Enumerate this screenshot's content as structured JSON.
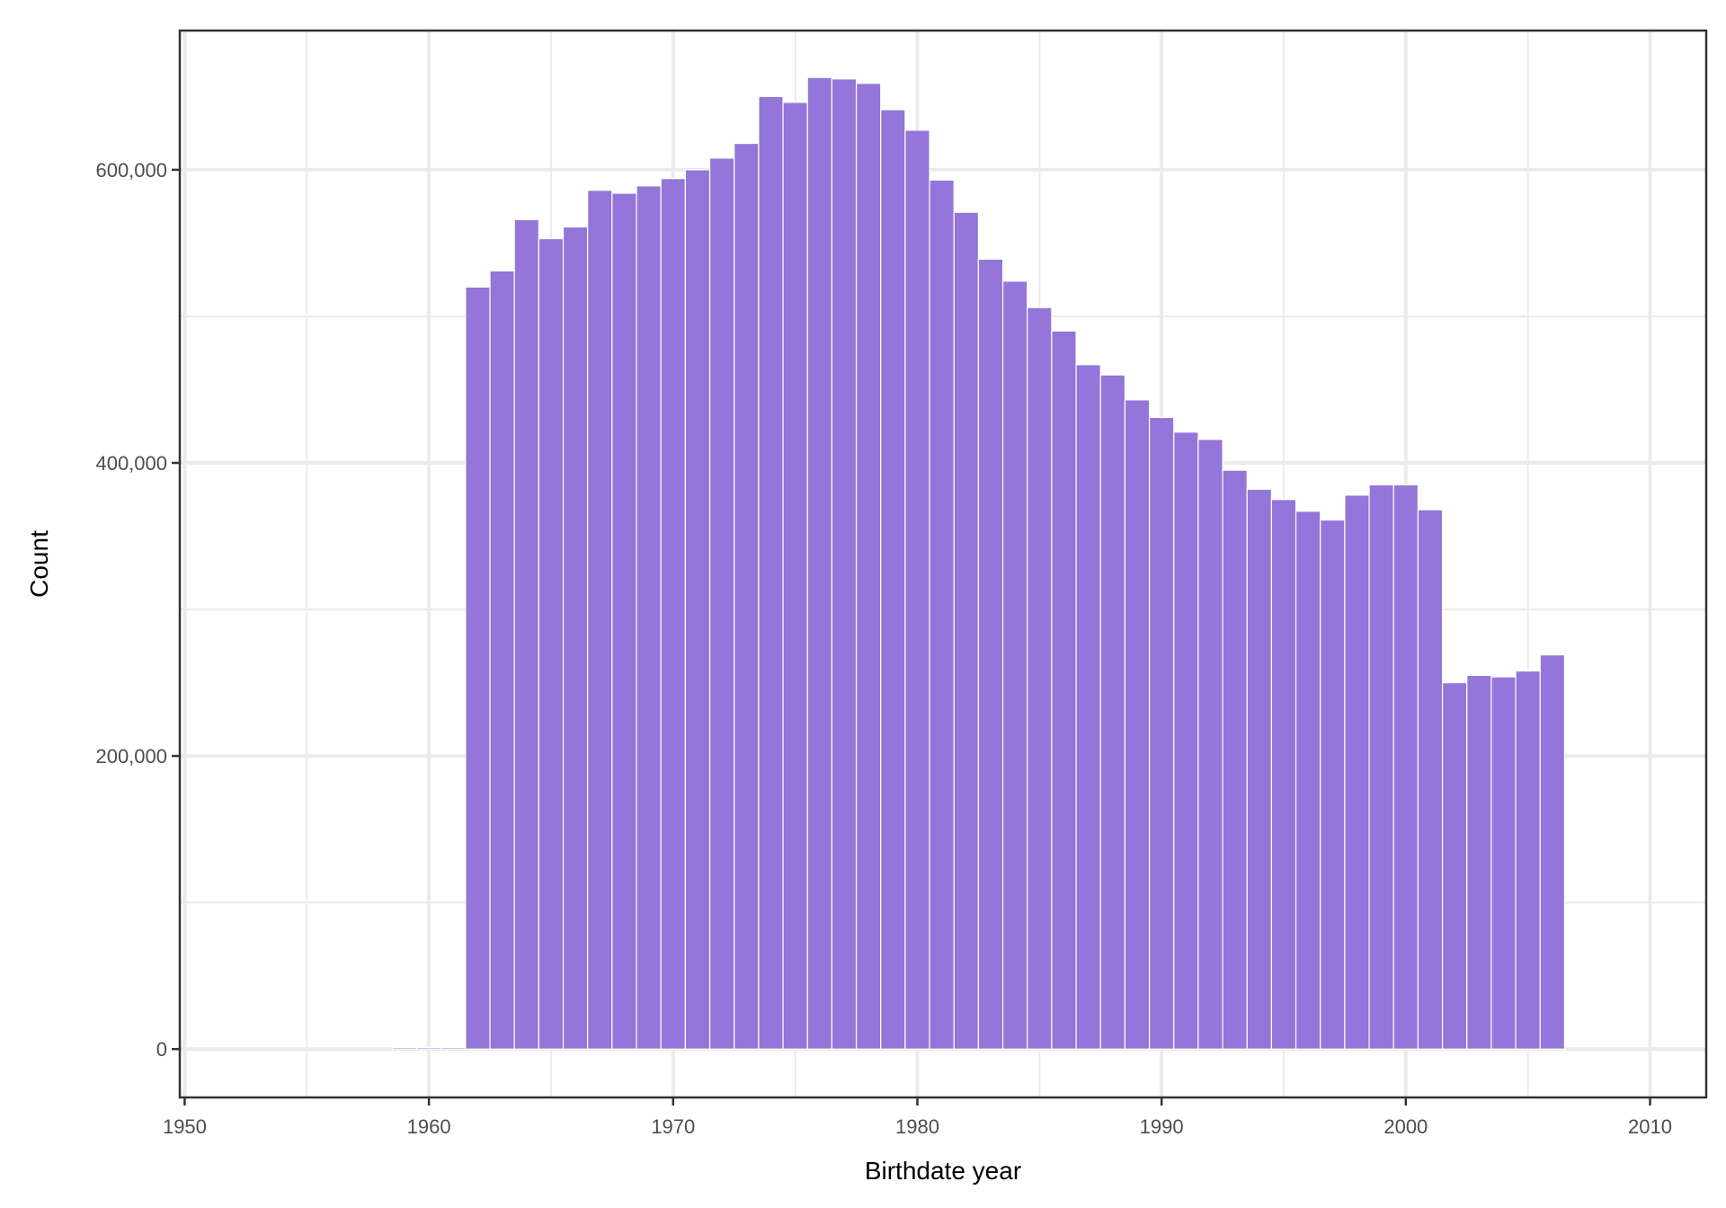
{
  "chart_data": {
    "type": "bar",
    "xlabel": "Birthdate year",
    "ylabel": "Count",
    "xlim": [
      1949.8,
      2012.3
    ],
    "ylim": [
      -33000,
      695000
    ],
    "x_ticks": [
      1950,
      1960,
      1970,
      1980,
      1990,
      2000,
      2010
    ],
    "x_tick_labels": [
      "1950",
      "1960",
      "1970",
      "1980",
      "1990",
      "2000",
      "2010"
    ],
    "x_minor_ticks": [
      1955,
      1965,
      1975,
      1985,
      1995,
      2005
    ],
    "y_ticks": [
      0,
      200000,
      400000,
      600000
    ],
    "y_tick_labels": [
      "0",
      "200,000",
      "400,000",
      "600,000"
    ],
    "y_minor_ticks": [
      100000,
      300000,
      500000
    ],
    "grid": true,
    "bar_color": "#9475d9",
    "x": [
      1959,
      1960,
      1961,
      1962,
      1963,
      1964,
      1965,
      1966,
      1967,
      1968,
      1969,
      1970,
      1971,
      1972,
      1973,
      1974,
      1975,
      1976,
      1977,
      1978,
      1979,
      1980,
      1981,
      1982,
      1983,
      1984,
      1985,
      1986,
      1987,
      1988,
      1989,
      1990,
      1991,
      1992,
      1993,
      1994,
      1995,
      1996,
      1997,
      1998,
      1999,
      2000,
      2001,
      2002,
      2003,
      2004,
      2005,
      2006
    ],
    "values": [
      1000,
      1000,
      1000,
      520000,
      531000,
      566000,
      553000,
      561000,
      586000,
      584000,
      589000,
      594000,
      600000,
      608000,
      618000,
      650000,
      646000,
      663000,
      662000,
      659000,
      641000,
      627000,
      593000,
      571000,
      539000,
      524000,
      506000,
      490000,
      467000,
      460000,
      443000,
      431000,
      421000,
      416000,
      395000,
      382000,
      375000,
      367000,
      361000,
      378000,
      385000,
      385000,
      368000,
      250000,
      255000,
      254000,
      258000,
      269000
    ]
  }
}
